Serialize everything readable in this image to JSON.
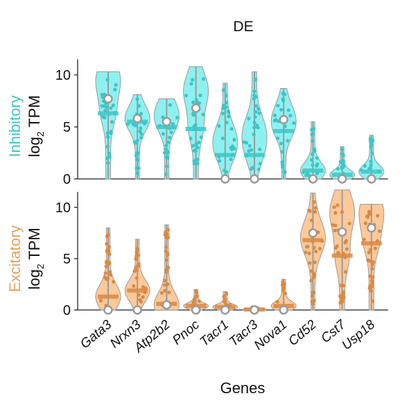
{
  "chart_data": {
    "type": "violin",
    "title": "DE",
    "xlabel": "Genes",
    "categories": [
      "Gata3",
      "Nrxn3",
      "Atp2b2",
      "Pnoc",
      "Tacr1",
      "Tacr3",
      "Nova1",
      "Cd52",
      "Cst7",
      "Usp18"
    ],
    "ylim": [
      0,
      11.5
    ],
    "yticks": [
      0,
      5,
      10
    ],
    "panels": [
      {
        "name": "Inhibitory",
        "ylabel_group": "Inhibitory",
        "ylabel_unit_main": "log",
        "ylabel_unit_sub": "2",
        "ylabel_unit_rest": " TPM",
        "fill": "#8ff0f0",
        "stroke": "#3fc5c5",
        "point_color": "#3fc5c5",
        "label_color": "#3fc5c5",
        "violins": [
          {
            "gene": "Gata3",
            "min": 0,
            "max": 10.3,
            "mean": 7.7,
            "median": 6.3,
            "mode": 9.5
          },
          {
            "gene": "Nrxn3",
            "min": 0,
            "max": 8.1,
            "mean": 5.8,
            "median": 5.5,
            "mode": 6.0
          },
          {
            "gene": "Atp2b2",
            "min": 0,
            "max": 7.7,
            "mean": 5.5,
            "median": 5.0,
            "mode": 6.5
          },
          {
            "gene": "Pnoc",
            "min": 0,
            "max": 10.8,
            "mean": 6.8,
            "median": 4.8,
            "mode": 8.5
          },
          {
            "gene": "Tacr1",
            "min": 0,
            "max": 9.2,
            "mean": 0,
            "median": 2.3,
            "mode": 4.0
          },
          {
            "gene": "Tacr3",
            "min": 0,
            "max": 10.3,
            "mean": 0,
            "median": 2.3,
            "mode": 4.5
          },
          {
            "gene": "Nova1",
            "min": 0,
            "max": 8.7,
            "mean": 5.7,
            "median": 4.6,
            "mode": 6.0
          },
          {
            "gene": "Cd52",
            "min": 0,
            "max": 5.5,
            "mean": 0,
            "median": 0.8,
            "mode": 0.8
          },
          {
            "gene": "Cst7",
            "min": 0,
            "max": 3.1,
            "mean": 0,
            "median": 0.4,
            "mode": 0.4
          },
          {
            "gene": "Usp18",
            "min": 0,
            "max": 4.2,
            "mean": 0,
            "median": 0.7,
            "mode": 0.7
          }
        ]
      },
      {
        "name": "Excitatory",
        "ylabel_group": "Excitatory",
        "ylabel_unit_main": "log",
        "ylabel_unit_sub": "2",
        "ylabel_unit_rest": " TPM",
        "fill": "#fdc99a",
        "stroke": "#d98a43",
        "point_color": "#d98a43",
        "label_color": "#e0a264",
        "violins": [
          {
            "gene": "Gata3",
            "min": 0,
            "max": 8.0,
            "mean": 0,
            "median": 1.3,
            "mode": 1.3
          },
          {
            "gene": "Nrxn3",
            "min": 0,
            "max": 6.9,
            "mean": 0,
            "median": 1.9,
            "mode": 1.9
          },
          {
            "gene": "Atp2b2",
            "min": 0,
            "max": 8.3,
            "mean": 0.5,
            "median": 0.6,
            "mode": 0.4
          },
          {
            "gene": "Pnoc",
            "min": 0,
            "max": 2.0,
            "mean": 0,
            "median": 0.4,
            "mode": 0.4
          },
          {
            "gene": "Tacr1",
            "min": 0,
            "max": 1.8,
            "mean": 0,
            "median": 0.3,
            "mode": 0.3
          },
          {
            "gene": "Tacr3",
            "min": 0,
            "max": 0.3,
            "mean": 0,
            "median": 0.05,
            "mode": 0.05
          },
          {
            "gene": "Nova1",
            "min": 0,
            "max": 3.0,
            "mean": 0,
            "median": 0.4,
            "mode": 0.4
          },
          {
            "gene": "Cd52",
            "min": 0,
            "max": 11.4,
            "mean": 7.5,
            "median": 6.8,
            "mode": 7.2
          },
          {
            "gene": "Cst7",
            "min": 0,
            "max": 11.7,
            "mean": 7.6,
            "median": 5.3,
            "mode": 9.5
          },
          {
            "gene": "Usp18",
            "min": 0,
            "max": 10.3,
            "mean": 8.0,
            "median": 6.5,
            "mode": 9.5
          }
        ]
      }
    ]
  }
}
